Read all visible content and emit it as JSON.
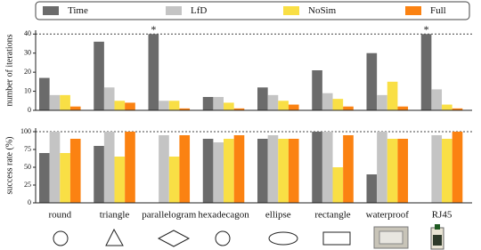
{
  "chart_data": [
    {
      "type": "bar",
      "ylabel": "number of iterations",
      "series": [
        {
          "name": "Time",
          "color": "#6b6b6b",
          "values": [
            17,
            36,
            40,
            7,
            12,
            21,
            30,
            40
          ]
        },
        {
          "name": "LfD",
          "color": "#c4c4c4",
          "values": [
            8,
            12,
            5,
            7,
            8,
            9,
            8,
            11
          ]
        },
        {
          "name": "NoSim",
          "color": "#f9df45",
          "values": [
            8,
            5,
            5,
            4,
            5,
            6,
            15,
            3
          ]
        },
        {
          "name": "Full",
          "color": "#fb8212",
          "values": [
            2,
            4,
            1,
            1,
            3,
            2,
            2,
            1
          ]
        }
      ],
      "ylim": [
        0,
        42
      ],
      "yticks": [
        0,
        10,
        20,
        30,
        40
      ],
      "hline": 40,
      "annotations": [
        {
          "text": "*",
          "category": "parallelogram",
          "series": "Time"
        },
        {
          "text": "*",
          "category": "RJ45",
          "series": "Time"
        }
      ]
    },
    {
      "type": "bar",
      "ylabel": "success rate (%)",
      "categories": [
        "round",
        "triangle",
        "parallelogram",
        "hexadecagon",
        "ellipse",
        "rectangle",
        "waterproof",
        "RJ45"
      ],
      "series": [
        {
          "color": "#6b6b6b",
          "values": [
            70,
            80,
            0,
            90,
            90,
            100,
            40,
            0
          ]
        },
        {
          "color": "#c4c4c4",
          "values": [
            100,
            100,
            95,
            85,
            95,
            100,
            100,
            95
          ]
        },
        {
          "color": "#f9df45",
          "values": [
            70,
            65,
            65,
            90,
            90,
            50,
            90,
            90
          ]
        },
        {
          "color": "#fb8212",
          "values": [
            90,
            100,
            95,
            95,
            90,
            95,
            90,
            100
          ]
        }
      ],
      "ylim": [
        0,
        105
      ],
      "yticks": [
        0,
        25,
        50,
        75,
        100
      ],
      "hline": 100
    }
  ]
}
